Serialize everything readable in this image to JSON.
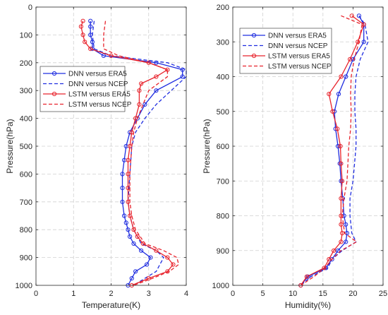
{
  "chart_data": [
    {
      "type": "line",
      "xlabel": "Temperature(K)",
      "ylabel": "Pressure(hPa)",
      "xlim": [
        0,
        4
      ],
      "ylim": [
        0,
        1000
      ],
      "y_reversed": true,
      "grid": true,
      "xticks": [
        0,
        1,
        2,
        3,
        4
      ],
      "yticks": [
        0,
        100,
        200,
        300,
        400,
        500,
        600,
        700,
        800,
        900,
        1000
      ],
      "legend": {
        "position": "upper-left"
      },
      "series": [
        {
          "name": "DNN versus ERA5",
          "color": "#1f2de0",
          "style": "solid",
          "marker": "circle",
          "points": [
            [
              1.45,
              50
            ],
            [
              1.45,
              70
            ],
            [
              1.45,
              100
            ],
            [
              1.5,
              125
            ],
            [
              1.5,
              150
            ],
            [
              1.8,
              175
            ],
            [
              3.2,
              200
            ],
            [
              3.9,
              225
            ],
            [
              3.9,
              250
            ],
            [
              3.2,
              300
            ],
            [
              2.9,
              350
            ],
            [
              2.7,
              400
            ],
            [
              2.5,
              450
            ],
            [
              2.4,
              500
            ],
            [
              2.35,
              550
            ],
            [
              2.3,
              600
            ],
            [
              2.3,
              650
            ],
            [
              2.3,
              700
            ],
            [
              2.35,
              750
            ],
            [
              2.4,
              775
            ],
            [
              2.45,
              800
            ],
            [
              2.5,
              825
            ],
            [
              2.6,
              850
            ],
            [
              2.8,
              875
            ],
            [
              3.05,
              900
            ],
            [
              2.95,
              925
            ],
            [
              2.65,
              950
            ],
            [
              2.55,
              975
            ],
            [
              2.45,
              1000
            ]
          ]
        },
        {
          "name": "DNN versus NCEP",
          "color": "#1f2de0",
          "style": "dashed",
          "marker": "none",
          "points": [
            [
              1.55,
              50
            ],
            [
              1.5,
              100
            ],
            [
              1.55,
              150
            ],
            [
              2.0,
              175
            ],
            [
              3.5,
              200
            ],
            [
              4.0,
              225
            ],
            [
              4.0,
              250
            ],
            [
              3.6,
              300
            ],
            [
              3.2,
              350
            ],
            [
              2.9,
              400
            ],
            [
              2.65,
              450
            ],
            [
              2.55,
              500
            ],
            [
              2.5,
              600
            ],
            [
              2.45,
              700
            ],
            [
              2.5,
              750
            ],
            [
              2.6,
              800
            ],
            [
              2.8,
              850
            ],
            [
              3.2,
              875
            ],
            [
              3.4,
              900
            ],
            [
              3.2,
              950
            ],
            [
              2.9,
              975
            ],
            [
              2.6,
              1000
            ]
          ]
        },
        {
          "name": "LSTM versus ERA5",
          "color": "#e8232c",
          "style": "solid",
          "marker": "circle",
          "points": [
            [
              1.25,
              50
            ],
            [
              1.2,
              70
            ],
            [
              1.25,
              100
            ],
            [
              1.3,
              125
            ],
            [
              1.45,
              150
            ],
            [
              2.0,
              175
            ],
            [
              3.0,
              200
            ],
            [
              3.5,
              225
            ],
            [
              3.2,
              250
            ],
            [
              2.8,
              275
            ],
            [
              2.75,
              300
            ],
            [
              2.75,
              350
            ],
            [
              2.65,
              400
            ],
            [
              2.55,
              450
            ],
            [
              2.5,
              500
            ],
            [
              2.45,
              550
            ],
            [
              2.45,
              600
            ],
            [
              2.45,
              650
            ],
            [
              2.45,
              700
            ],
            [
              2.5,
              750
            ],
            [
              2.6,
              800
            ],
            [
              2.7,
              825
            ],
            [
              2.85,
              850
            ],
            [
              3.2,
              875
            ],
            [
              3.5,
              900
            ],
            [
              3.65,
              925
            ],
            [
              3.5,
              950
            ],
            [
              3.0,
              975
            ],
            [
              2.55,
              1000
            ]
          ]
        },
        {
          "name": "LSTM versus NCEP",
          "color": "#e8232c",
          "style": "dashed",
          "marker": "none",
          "points": [
            [
              1.85,
              50
            ],
            [
              1.8,
              100
            ],
            [
              1.8,
              150
            ],
            [
              2.2,
              175
            ],
            [
              3.0,
              200
            ],
            [
              3.5,
              225
            ],
            [
              3.5,
              250
            ],
            [
              3.0,
              300
            ],
            [
              2.85,
              350
            ],
            [
              2.7,
              400
            ],
            [
              2.6,
              450
            ],
            [
              2.55,
              500
            ],
            [
              2.5,
              600
            ],
            [
              2.5,
              700
            ],
            [
              2.55,
              750
            ],
            [
              2.65,
              800
            ],
            [
              2.9,
              850
            ],
            [
              3.4,
              875
            ],
            [
              3.75,
              900
            ],
            [
              3.8,
              925
            ],
            [
              3.55,
              950
            ],
            [
              3.1,
              975
            ],
            [
              2.6,
              1000
            ]
          ]
        }
      ]
    },
    {
      "type": "line",
      "xlabel": "Humidity(%)",
      "ylabel": "Pressure(hPa)",
      "xlim": [
        0,
        25
      ],
      "ylim": [
        200,
        1000
      ],
      "y_reversed": true,
      "grid": true,
      "xticks": [
        0,
        5,
        10,
        15,
        20,
        25
      ],
      "yticks": [
        200,
        300,
        400,
        500,
        600,
        700,
        800,
        900,
        1000
      ],
      "legend": {
        "position": "upper-left"
      },
      "series": [
        {
          "name": "DNN versus ERA5",
          "color": "#1f2de0",
          "style": "solid",
          "marker": "circle",
          "points": [
            [
              21.0,
              225
            ],
            [
              21.8,
              250
            ],
            [
              21.8,
              300
            ],
            [
              20.0,
              350
            ],
            [
              18.8,
              400
            ],
            [
              17.6,
              450
            ],
            [
              16.9,
              500
            ],
            [
              17.1,
              550
            ],
            [
              17.5,
              600
            ],
            [
              17.8,
              650
            ],
            [
              18.0,
              700
            ],
            [
              18.3,
              750
            ],
            [
              18.5,
              800
            ],
            [
              18.8,
              825
            ],
            [
              19.0,
              850
            ],
            [
              18.8,
              875
            ],
            [
              17.5,
              900
            ],
            [
              16.5,
              925
            ],
            [
              15.5,
              950
            ],
            [
              12.5,
              975
            ],
            [
              11.3,
              1000
            ]
          ]
        },
        {
          "name": "DNN versus NCEP",
          "color": "#1f2de0",
          "style": "dashed",
          "marker": "none",
          "points": [
            [
              21.0,
              225
            ],
            [
              22.0,
              250
            ],
            [
              22.5,
              300
            ],
            [
              21.2,
              350
            ],
            [
              20.5,
              400
            ],
            [
              20.3,
              450
            ],
            [
              20.3,
              500
            ],
            [
              20.5,
              550
            ],
            [
              20.5,
              600
            ],
            [
              20.0,
              700
            ],
            [
              19.5,
              750
            ],
            [
              19.5,
              800
            ],
            [
              19.8,
              850
            ],
            [
              20.5,
              875
            ],
            [
              18.2,
              900
            ],
            [
              16.5,
              925
            ],
            [
              15.8,
              950
            ],
            [
              13.0,
              975
            ],
            [
              11.3,
              1000
            ]
          ]
        },
        {
          "name": "LSTM versus ERA5",
          "color": "#e8232c",
          "style": "solid",
          "marker": "circle",
          "points": [
            [
              19.8,
              225
            ],
            [
              21.8,
              250
            ],
            [
              20.8,
              300
            ],
            [
              19.5,
              350
            ],
            [
              18.0,
              400
            ],
            [
              16.0,
              450
            ],
            [
              16.6,
              500
            ],
            [
              17.4,
              550
            ],
            [
              17.9,
              600
            ],
            [
              18.0,
              650
            ],
            [
              18.2,
              700
            ],
            [
              18.0,
              750
            ],
            [
              18.0,
              800
            ],
            [
              18.0,
              825
            ],
            [
              18.2,
              850
            ],
            [
              18.0,
              875
            ],
            [
              16.8,
              900
            ],
            [
              16.0,
              925
            ],
            [
              15.2,
              950
            ],
            [
              12.3,
              975
            ],
            [
              11.3,
              1000
            ]
          ]
        },
        {
          "name": "LSTM versus NCEP",
          "color": "#e8232c",
          "style": "dashed",
          "marker": "none",
          "points": [
            [
              18.0,
              225
            ],
            [
              21.5,
              250
            ],
            [
              21.0,
              300
            ],
            [
              20.2,
              350
            ],
            [
              19.7,
              400
            ],
            [
              19.6,
              450
            ],
            [
              19.7,
              500
            ],
            [
              19.6,
              550
            ],
            [
              19.3,
              600
            ],
            [
              19.0,
              700
            ],
            [
              18.5,
              750
            ],
            [
              18.2,
              800
            ],
            [
              18.6,
              850
            ],
            [
              20.6,
              875
            ],
            [
              18.0,
              900
            ],
            [
              16.5,
              925
            ],
            [
              15.3,
              950
            ],
            [
              13.5,
              975
            ],
            [
              11.3,
              1000
            ]
          ]
        }
      ]
    }
  ]
}
